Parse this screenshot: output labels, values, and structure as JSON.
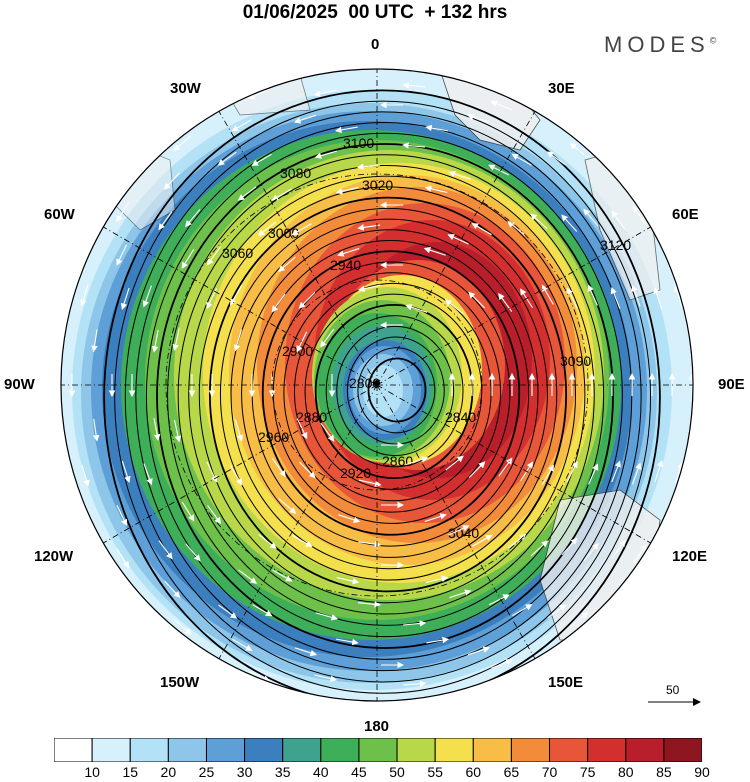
{
  "header": {
    "title": "01/06/2025  00 UTC  + 132 hrs",
    "brand": "MODES"
  },
  "longitude_labels": {
    "top": "0",
    "top_right": "30E",
    "upper_right": "60E",
    "right": "90E",
    "lower_right": "120E",
    "bottom_right": "150E",
    "bottom": "180",
    "bottom_left": "150W",
    "lower_left": "120W",
    "left": "90W",
    "upper_left": "60W",
    "top_left": "30W"
  },
  "wind_scale": {
    "label": "50"
  },
  "contour_labels": [
    "3100",
    "3080",
    "3020",
    "3060",
    "3000",
    "2940",
    "2960",
    "2920",
    "2900",
    "2880",
    "2800",
    "2840",
    "2860",
    "3040",
    "3120",
    "3090"
  ],
  "colorbar": {
    "ticks": [
      "10",
      "15",
      "20",
      "25",
      "30",
      "35",
      "40",
      "45",
      "50",
      "55",
      "60",
      "65",
      "70",
      "75",
      "80",
      "85",
      "90"
    ],
    "colors": [
      "#ffffff",
      "#d6f0fc",
      "#b3e1f6",
      "#8ec6ea",
      "#5d9fd6",
      "#3b7fbf",
      "#3fa28f",
      "#3fae59",
      "#6dc04a",
      "#b8d84a",
      "#f4e04d",
      "#f7bd47",
      "#f28c3b",
      "#e8563a",
      "#d32f2f",
      "#b81f2a",
      "#8e1620"
    ]
  },
  "colors": {
    "land": "#efefef",
    "wind_arrows": "#ffffff",
    "contours": "#000000"
  }
}
